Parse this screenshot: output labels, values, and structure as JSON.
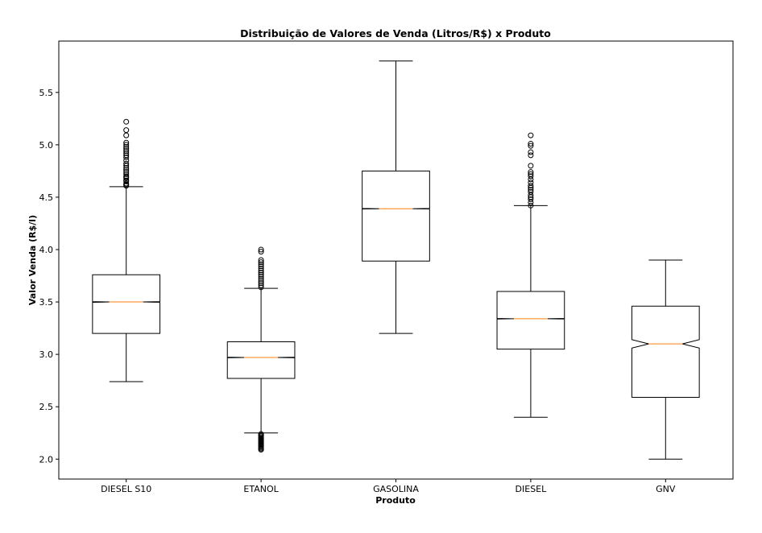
{
  "chart_data": {
    "type": "boxplot",
    "title": "Distribuição de Valores de Venda (Litros/R$) x Produto",
    "xlabel": "Produto",
    "ylabel": "Valor Venda (R$/l)",
    "ylim": [
      1.81,
      5.99
    ],
    "yticks": [
      2.0,
      2.5,
      3.0,
      3.5,
      4.0,
      4.5,
      5.0,
      5.5
    ],
    "ytick_labels": [
      "2.0",
      "2.5",
      "3.0",
      "3.5",
      "4.0",
      "4.5",
      "5.0",
      "5.5"
    ],
    "grid": false,
    "notched": true,
    "categories": [
      "DIESEL S10",
      "ETANOL",
      "GASOLINA",
      "DIESEL",
      "GNV"
    ],
    "boxes": [
      {
        "category": "DIESEL S10",
        "whisker_low": 2.74,
        "q1": 3.2,
        "median": 3.5,
        "q3": 3.76,
        "whisker_high": 4.6,
        "notch_low": 3.497,
        "notch_high": 3.503,
        "outliers": [
          4.61,
          4.62,
          4.63,
          4.65,
          4.66,
          4.68,
          4.69,
          4.7,
          4.72,
          4.74,
          4.76,
          4.78,
          4.8,
          4.82,
          4.85,
          4.88,
          4.9,
          4.92,
          4.94,
          4.96,
          4.98,
          5.0,
          5.02,
          5.09,
          5.14,
          5.22
        ]
      },
      {
        "category": "ETANOL",
        "whisker_low": 2.25,
        "q1": 2.77,
        "median": 2.97,
        "q3": 3.12,
        "whisker_high": 3.63,
        "notch_low": 2.967,
        "notch_high": 2.973,
        "outliers": [
          2.09,
          2.1,
          2.11,
          2.12,
          2.13,
          2.14,
          2.15,
          2.16,
          2.17,
          2.18,
          2.19,
          2.2,
          2.21,
          2.22,
          2.23,
          2.24,
          3.64,
          3.66,
          3.68,
          3.7,
          3.72,
          3.74,
          3.76,
          3.78,
          3.8,
          3.82,
          3.84,
          3.86,
          3.88,
          3.9,
          3.98,
          4.0
        ]
      },
      {
        "category": "GASOLINA",
        "whisker_low": 3.2,
        "q1": 3.89,
        "median": 4.39,
        "q3": 4.75,
        "whisker_high": 5.8,
        "notch_low": 4.387,
        "notch_high": 4.393,
        "outliers": []
      },
      {
        "category": "DIESEL",
        "whisker_low": 2.4,
        "q1": 3.05,
        "median": 3.34,
        "q3": 3.6,
        "whisker_high": 4.42,
        "notch_low": 3.337,
        "notch_high": 3.343,
        "outliers": [
          4.42,
          4.45,
          4.48,
          4.5,
          4.52,
          4.55,
          4.57,
          4.59,
          4.61,
          4.64,
          4.67,
          4.7,
          4.72,
          4.74,
          4.8,
          4.9,
          4.93,
          4.99,
          5.01,
          5.09
        ]
      },
      {
        "category": "GNV",
        "whisker_low": 2.0,
        "q1": 2.59,
        "median": 3.1,
        "q3": 3.46,
        "whisker_high": 3.9,
        "notch_low": 3.06,
        "notch_high": 3.14,
        "outliers": []
      }
    ],
    "colors": {
      "box": "#000000",
      "median": "#ff7f0e",
      "outlier": "#000000"
    }
  }
}
